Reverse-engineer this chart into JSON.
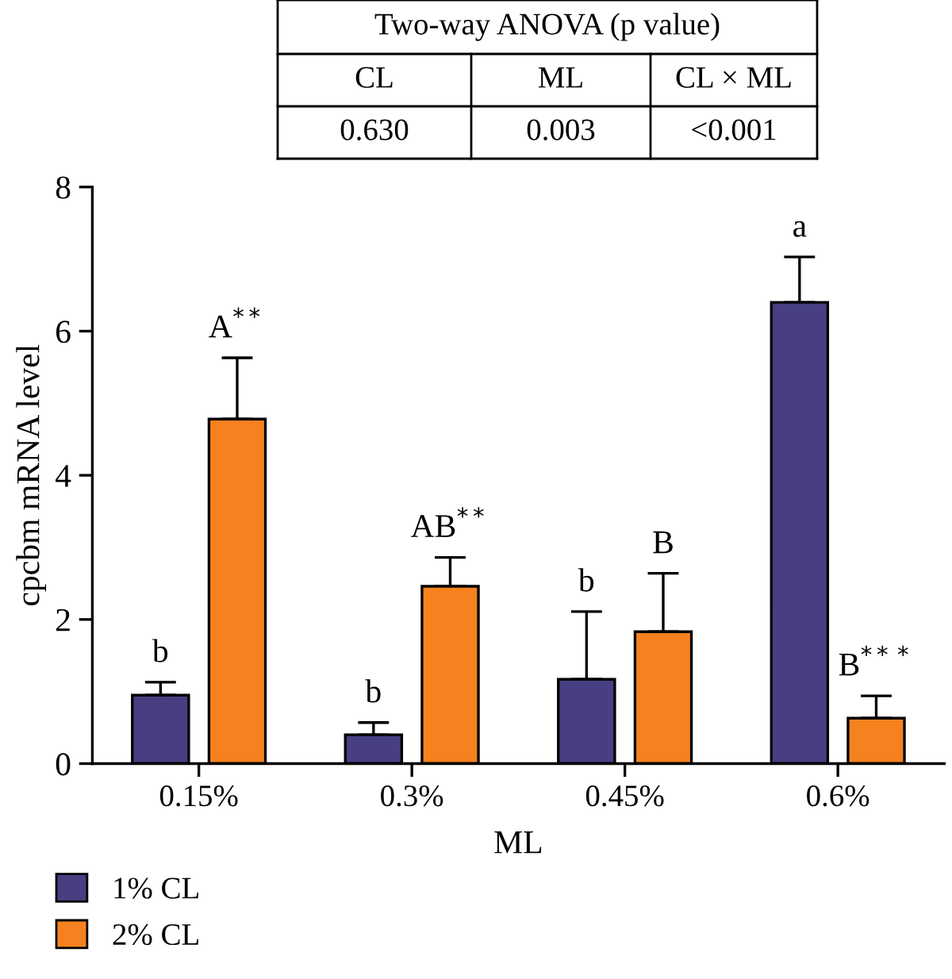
{
  "chart_data": {
    "type": "bar",
    "categories": [
      "0.15%",
      "0.3%",
      "0.45%",
      "0.6%"
    ],
    "xlabel": "ML",
    "ylabel": "cpcbm mRNA level",
    "ylim": [
      0,
      8
    ],
    "yticks": [
      0,
      2,
      4,
      6,
      8
    ],
    "legend": "bottom left",
    "grid": false,
    "series": [
      {
        "name": "1% CL",
        "color": "#473f81",
        "values": [
          0.95,
          0.4,
          1.17,
          6.4
        ],
        "errors": [
          [
            0.95,
            1.13
          ],
          [
            0.4,
            0.57
          ],
          [
            1.17,
            2.11
          ],
          [
            6.4,
            7.03
          ]
        ]
      },
      {
        "name": "2% CL",
        "color": "#f5821f",
        "values": [
          4.78,
          2.46,
          1.83,
          0.63
        ],
        "errors": [
          [
            4.78,
            5.63
          ],
          [
            2.46,
            2.86
          ],
          [
            1.83,
            2.64
          ],
          [
            0.63,
            0.94
          ]
        ]
      }
    ],
    "annotations": [
      "Two-way ANOVA (p value)",
      "CL",
      "ML",
      "CL × ML",
      "0.630",
      "0.003",
      "<0.001",
      "b",
      "A$^{**}$",
      "b",
      "AB$^{**}$",
      "b",
      "B",
      "a",
      "B$^{***}$"
    ]
  }
}
